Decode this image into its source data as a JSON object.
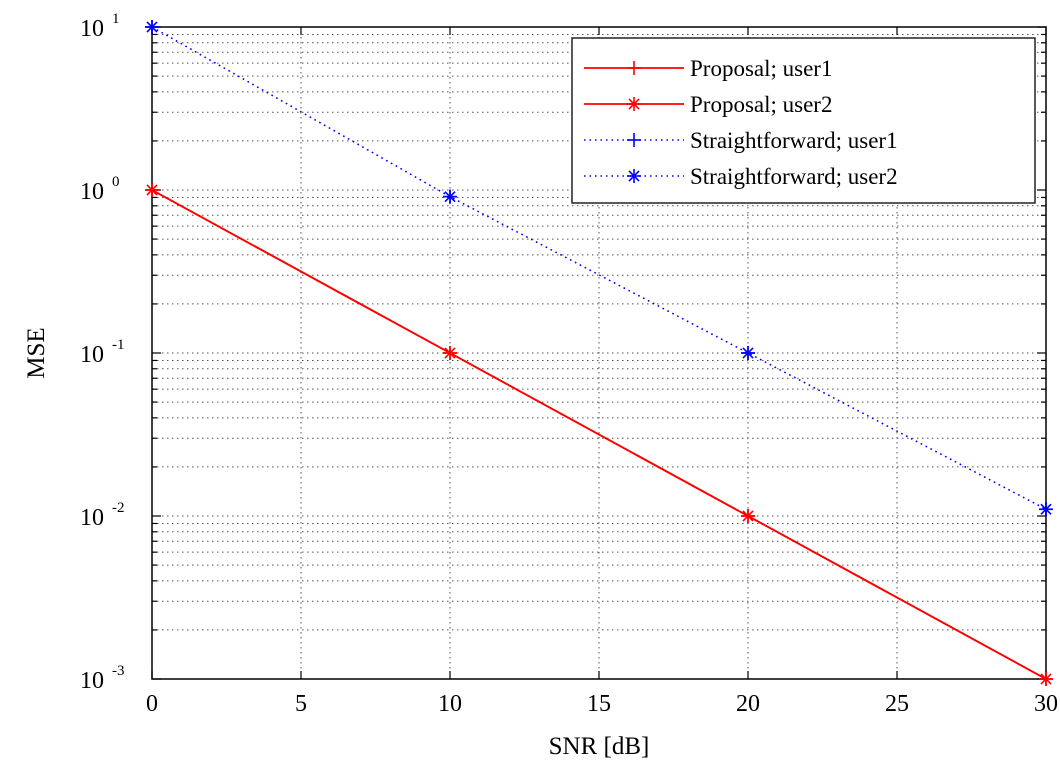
{
  "chart_data": {
    "type": "line",
    "title": "",
    "xlabel": "SNR [dB]",
    "ylabel": "MSE",
    "xlim": [
      0,
      30
    ],
    "ylim": [
      0.001,
      10
    ],
    "yscale": "log",
    "grid": true,
    "legend_position": "top-right",
    "xticks": [
      "0",
      "5",
      "10",
      "15",
      "20",
      "25",
      "30"
    ],
    "xtick_values": [
      0,
      5,
      10,
      15,
      20,
      25,
      30
    ],
    "yticks": [
      {
        "base": "10",
        "exp": "-3",
        "value": 0.001
      },
      {
        "base": "10",
        "exp": "-2",
        "value": 0.01
      },
      {
        "base": "10",
        "exp": "-1",
        "value": 0.1
      },
      {
        "base": "10",
        "exp": "0",
        "value": 1
      },
      {
        "base": "10",
        "exp": "1",
        "value": 10
      }
    ],
    "series": [
      {
        "name": "Proposal; user1",
        "color": "#ff0000",
        "line": "solid",
        "marker": "plus",
        "x": [
          0,
          10,
          20,
          30
        ],
        "y": [
          1,
          0.1,
          0.01,
          0.001
        ]
      },
      {
        "name": "Proposal; user2",
        "color": "#ff0000",
        "line": "solid",
        "marker": "star",
        "x": [
          0,
          10,
          20,
          30
        ],
        "y": [
          1,
          0.1,
          0.01,
          0.001
        ]
      },
      {
        "name": "Straightforward; user1",
        "color": "#0000ff",
        "line": "dotted",
        "marker": "plus",
        "x": [
          0,
          10,
          20,
          30
        ],
        "y": [
          10,
          0.91,
          0.1,
          0.011
        ]
      },
      {
        "name": "Straightforward; user2",
        "color": "#0000ff",
        "line": "dotted",
        "marker": "star",
        "x": [
          0,
          10,
          20,
          30
        ],
        "y": [
          10,
          0.91,
          0.1,
          0.011
        ]
      }
    ]
  }
}
